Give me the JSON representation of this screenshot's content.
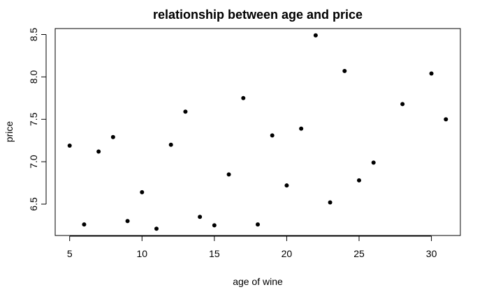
{
  "chart_data": {
    "type": "scatter",
    "title": "relationship between age and price",
    "xlabel": "age of wine",
    "ylabel": "price",
    "xlim": [
      4.0,
      32.0
    ],
    "ylim": [
      6.13,
      8.57
    ],
    "xticks": [
      5,
      10,
      15,
      20,
      25,
      30
    ],
    "yticks": [
      6.5,
      7.0,
      7.5,
      8.0,
      8.5
    ],
    "xtick_labels": [
      "5",
      "10",
      "15",
      "20",
      "25",
      "30"
    ],
    "ytick_labels": [
      "6.5",
      "7.0",
      "7.5",
      "8.0",
      "8.5"
    ],
    "grid": false,
    "point_color": "#000000",
    "points": [
      {
        "x": 5,
        "y": 7.19
      },
      {
        "x": 6,
        "y": 6.26
      },
      {
        "x": 7,
        "y": 7.12
      },
      {
        "x": 8,
        "y": 7.29
      },
      {
        "x": 9,
        "y": 6.3
      },
      {
        "x": 10,
        "y": 6.64
      },
      {
        "x": 11,
        "y": 6.21
      },
      {
        "x": 12,
        "y": 7.2
      },
      {
        "x": 13,
        "y": 7.59
      },
      {
        "x": 14,
        "y": 6.35
      },
      {
        "x": 15,
        "y": 6.25
      },
      {
        "x": 16,
        "y": 6.85
      },
      {
        "x": 17,
        "y": 7.75
      },
      {
        "x": 18,
        "y": 6.26
      },
      {
        "x": 19,
        "y": 7.31
      },
      {
        "x": 20,
        "y": 6.72
      },
      {
        "x": 21,
        "y": 7.39
      },
      {
        "x": 22,
        "y": 8.49
      },
      {
        "x": 23,
        "y": 6.52
      },
      {
        "x": 24,
        "y": 8.07
      },
      {
        "x": 25,
        "y": 6.78
      },
      {
        "x": 26,
        "y": 6.99
      },
      {
        "x": 28,
        "y": 7.68
      },
      {
        "x": 30,
        "y": 8.04
      },
      {
        "x": 31,
        "y": 7.5
      }
    ]
  }
}
